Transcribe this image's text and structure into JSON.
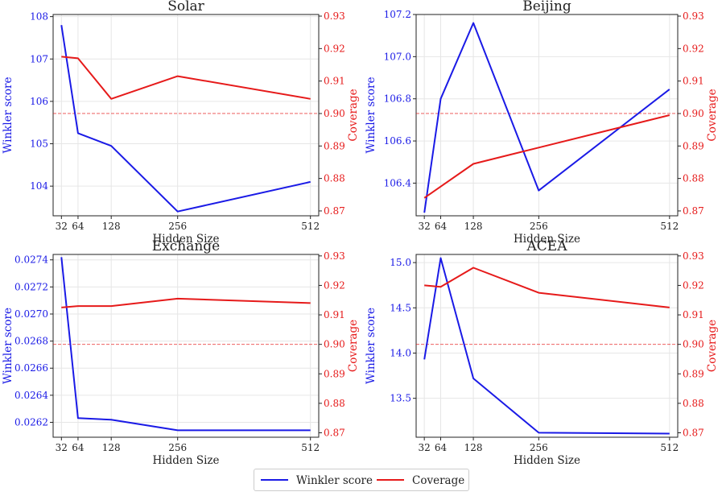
{
  "colors": {
    "winkler": "#1a1ae6",
    "coverage": "#e61a1a",
    "reference": "#e61a1a"
  },
  "chart_data": [
    {
      "type": "line",
      "title": "Solar",
      "xlabel": "Hidden Size",
      "ylabel_left": "Winkler score",
      "ylabel_right": "Coverage",
      "x": [
        32,
        64,
        128,
        256,
        512
      ],
      "x_ticks": [
        "32",
        "64",
        "128",
        "256",
        "512"
      ],
      "xlim": [
        16,
        528
      ],
      "ylim_left": [
        103.3,
        108.05
      ],
      "ylim_right": [
        0.8685,
        0.9305
      ],
      "yticks_left": [
        "104",
        "105",
        "106",
        "107",
        "108"
      ],
      "yticks_right": [
        "0.87",
        "0.88",
        "0.89",
        "0.90",
        "0.91",
        "0.92",
        "0.93"
      ],
      "reference_coverage": 0.9,
      "series": [
        {
          "name": "Winkler score",
          "axis": "left",
          "values": [
            107.8,
            105.25,
            104.95,
            103.4,
            104.1
          ]
        },
        {
          "name": "Coverage",
          "axis": "right",
          "values": [
            0.9175,
            0.917,
            0.9045,
            0.9115,
            0.9045
          ]
        }
      ]
    },
    {
      "type": "line",
      "title": "Beijing",
      "xlabel": "Hidden Size",
      "ylabel_left": "Winkler score",
      "ylabel_right": "Coverage",
      "x": [
        32,
        64,
        128,
        256,
        512
      ],
      "x_ticks": [
        "32",
        "64",
        "128",
        "256",
        "512"
      ],
      "xlim": [
        16,
        528
      ],
      "ylim_left": [
        106.245,
        107.2
      ],
      "ylim_right": [
        0.8685,
        0.9305
      ],
      "yticks_left": [
        "106.4",
        "106.6",
        "106.8",
        "107.0",
        "107.2"
      ],
      "yticks_right": [
        "0.87",
        "0.88",
        "0.89",
        "0.90",
        "0.91",
        "0.92",
        "0.93"
      ],
      "reference_coverage": 0.9,
      "series": [
        {
          "name": "Winkler score",
          "axis": "left",
          "values": [
            106.26,
            106.8,
            107.16,
            106.365,
            106.845
          ]
        },
        {
          "name": "Coverage",
          "axis": "right",
          "values": [
            0.874,
            0.8775,
            0.8845,
            0.8895,
            0.8995
          ]
        }
      ]
    },
    {
      "type": "line",
      "title": "Exchange",
      "xlabel": "Hidden Size",
      "ylabel_left": "Winkler score",
      "ylabel_right": "Coverage",
      "x": [
        32,
        64,
        128,
        256,
        512
      ],
      "x_ticks": [
        "32",
        "64",
        "128",
        "256",
        "512"
      ],
      "xlim": [
        16,
        528
      ],
      "ylim_left": [
        0.02609,
        0.02744
      ],
      "ylim_right": [
        0.8685,
        0.9305
      ],
      "yticks_left": [
        "0.0262",
        "0.0264",
        "0.0266",
        "0.0268",
        "0.0270",
        "0.0272",
        "0.0274"
      ],
      "yticks_right": [
        "0.87",
        "0.88",
        "0.89",
        "0.90",
        "0.91",
        "0.92",
        "0.93"
      ],
      "reference_coverage": 0.9,
      "series": [
        {
          "name": "Winkler score",
          "axis": "left",
          "values": [
            0.02742,
            0.026231,
            0.026219,
            0.026141,
            0.026141
          ]
        },
        {
          "name": "Coverage",
          "axis": "right",
          "values": [
            0.9125,
            0.913,
            0.913,
            0.9155,
            0.914
          ]
        }
      ]
    },
    {
      "type": "line",
      "title": "ACEA",
      "xlabel": "Hidden Size",
      "ylabel_left": "Winkler score",
      "ylabel_right": "Coverage",
      "x": [
        32,
        64,
        128,
        256,
        512
      ],
      "x_ticks": [
        "32",
        "64",
        "128",
        "256",
        "512"
      ],
      "xlim": [
        16,
        528
      ],
      "ylim_left": [
        13.07,
        15.09
      ],
      "ylim_right": [
        0.8685,
        0.9305
      ],
      "yticks_left": [
        "13.5",
        "14.0",
        "14.5",
        "15.0"
      ],
      "yticks_right": [
        "0.87",
        "0.88",
        "0.89",
        "0.90",
        "0.91",
        "0.92",
        "0.93"
      ],
      "reference_coverage": 0.9,
      "series": [
        {
          "name": "Winkler score",
          "axis": "left",
          "values": [
            13.93,
            15.05,
            13.72,
            13.12,
            13.11
          ]
        },
        {
          "name": "Coverage",
          "axis": "right",
          "values": [
            0.92,
            0.9195,
            0.926,
            0.9175,
            0.9125
          ]
        }
      ]
    }
  ],
  "legend": {
    "items": [
      "Winkler score",
      "Coverage"
    ]
  }
}
